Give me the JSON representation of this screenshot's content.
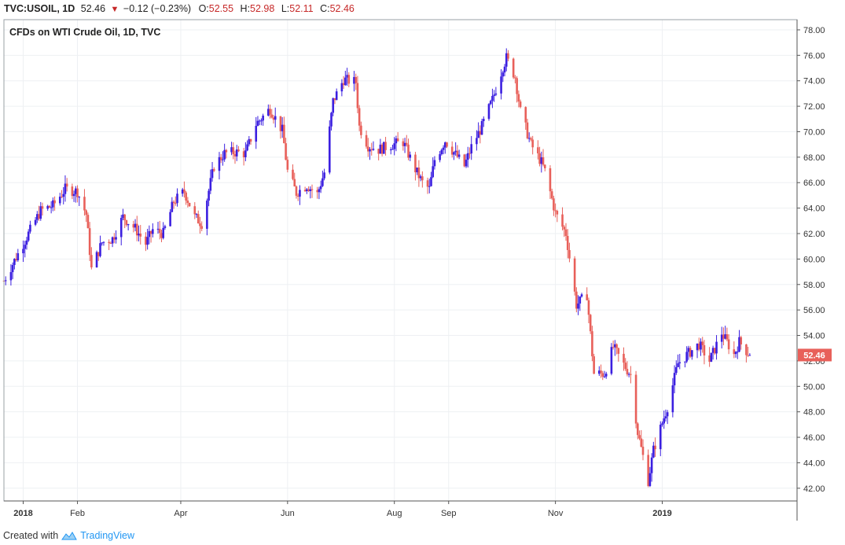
{
  "header": {
    "symbol": "TVC:USOIL, 1D",
    "last": "52.46",
    "change": "−0.12 (−0.23%)",
    "o_label": "O:",
    "o_value": "52.55",
    "h_label": "H:",
    "h_value": "52.98",
    "l_label": "L:",
    "l_value": "52.11",
    "c_label": "C:",
    "c_value": "52.46"
  },
  "footer": {
    "created_with": "Created with",
    "brand": "TradingView"
  },
  "colors": {
    "up": "#3b1fe0",
    "down": "#e8605a",
    "grid": "#eef0f3",
    "axis": "#555555",
    "price_tag": "#e8605a"
  },
  "chart_data": {
    "type": "candlestick",
    "title": "CFDs on WTI Crude Oil, 1D, TVC",
    "ylim": [
      41,
      78.8
    ],
    "y_ticks": [
      "78.00",
      "76.00",
      "74.00",
      "72.00",
      "70.00",
      "68.00",
      "66.00",
      "64.00",
      "62.00",
      "60.00",
      "58.00",
      "56.00",
      "54.00",
      "52.00",
      "50.00",
      "48.00",
      "46.00",
      "44.00",
      "42.00"
    ],
    "x_ticks": [
      {
        "label": "2018",
        "date": "2018-01-01"
      },
      {
        "label": "Feb",
        "date": "2018-02-01"
      },
      {
        "label": "Apr",
        "date": "2018-04-01"
      },
      {
        "label": "Jun",
        "date": "2018-06-01"
      },
      {
        "label": "Aug",
        "date": "2018-08-01"
      },
      {
        "label": "Sep",
        "date": "2018-09-01"
      },
      {
        "label": "Nov",
        "date": "2018-11-01"
      },
      {
        "label": "2019",
        "date": "2019-01-01"
      }
    ],
    "last_price": "52.46",
    "close_path": [
      [
        "2017-12-21",
        58.3
      ],
      [
        "2017-12-29",
        60.4
      ],
      [
        "2018-01-04",
        62.0
      ],
      [
        "2018-01-11",
        63.8
      ],
      [
        "2018-01-18",
        64.2
      ],
      [
        "2018-01-25",
        65.5
      ],
      [
        "2018-02-01",
        65.3
      ],
      [
        "2018-02-06",
        63.5
      ],
      [
        "2018-02-09",
        59.2
      ],
      [
        "2018-02-15",
        61.3
      ],
      [
        "2018-02-21",
        61.6
      ],
      [
        "2018-02-27",
        63.3
      ],
      [
        "2018-03-06",
        62.4
      ],
      [
        "2018-03-12",
        61.2
      ],
      [
        "2018-03-16",
        62.3
      ],
      [
        "2018-03-22",
        62.0
      ],
      [
        "2018-03-28",
        64.5
      ],
      [
        "2018-04-03",
        65.3
      ],
      [
        "2018-04-09",
        63.3
      ],
      [
        "2018-04-13",
        62.8
      ],
      [
        "2018-04-20",
        67.3
      ],
      [
        "2018-04-26",
        68.3
      ],
      [
        "2018-05-02",
        68.4
      ],
      [
        "2018-05-08",
        68.3
      ],
      [
        "2018-05-14",
        70.6
      ],
      [
        "2018-05-22",
        71.8
      ],
      [
        "2018-05-29",
        70.1
      ],
      [
        "2018-06-01",
        66.9
      ],
      [
        "2018-06-06",
        65.2
      ],
      [
        "2018-06-12",
        65.8
      ],
      [
        "2018-06-18",
        65.1
      ],
      [
        "2018-06-22",
        66.8
      ],
      [
        "2018-06-27",
        72.4
      ],
      [
        "2018-07-03",
        74.1
      ],
      [
        "2018-07-10",
        73.9
      ],
      [
        "2018-07-12",
        70.4
      ],
      [
        "2018-07-17",
        68.9
      ],
      [
        "2018-07-23",
        68.6
      ],
      [
        "2018-07-31",
        69.0
      ],
      [
        "2018-08-06",
        69.2
      ],
      [
        "2018-08-12",
        67.3
      ],
      [
        "2018-08-17",
        66.0
      ],
      [
        "2018-08-21",
        65.5
      ],
      [
        "2018-08-24",
        67.8
      ],
      [
        "2018-08-30",
        69.3
      ],
      [
        "2018-09-05",
        68.2
      ],
      [
        "2018-09-10",
        67.3
      ],
      [
        "2018-09-14",
        68.8
      ],
      [
        "2018-09-20",
        70.4
      ],
      [
        "2018-09-26",
        72.5
      ],
      [
        "2018-10-02",
        75.1
      ],
      [
        "2018-10-04",
        75.8
      ],
      [
        "2018-10-09",
        74.3
      ],
      [
        "2018-10-12",
        71.6
      ],
      [
        "2018-10-18",
        69.0
      ],
      [
        "2018-10-24",
        67.6
      ],
      [
        "2018-10-26",
        66.9
      ],
      [
        "2018-11-01",
        63.6
      ],
      [
        "2018-11-07",
        62.0
      ],
      [
        "2018-11-13",
        56.4
      ],
      [
        "2018-11-19",
        57.2
      ],
      [
        "2018-11-23",
        51.0
      ],
      [
        "2018-11-29",
        51.0
      ],
      [
        "2018-12-04",
        53.1
      ],
      [
        "2018-12-10",
        51.7
      ],
      [
        "2018-12-14",
        50.9
      ],
      [
        "2018-12-18",
        46.4
      ],
      [
        "2018-12-24",
        42.6
      ],
      [
        "2018-12-27",
        45.0
      ],
      [
        "2019-01-04",
        48.4
      ],
      [
        "2019-01-10",
        51.8
      ],
      [
        "2019-01-16",
        52.6
      ],
      [
        "2019-01-22",
        53.3
      ],
      [
        "2019-01-28",
        52.0
      ],
      [
        "2019-02-04",
        54.2
      ],
      [
        "2019-02-11",
        52.5
      ],
      [
        "2019-02-14",
        53.5
      ],
      [
        "2019-02-20",
        52.46
      ]
    ]
  }
}
